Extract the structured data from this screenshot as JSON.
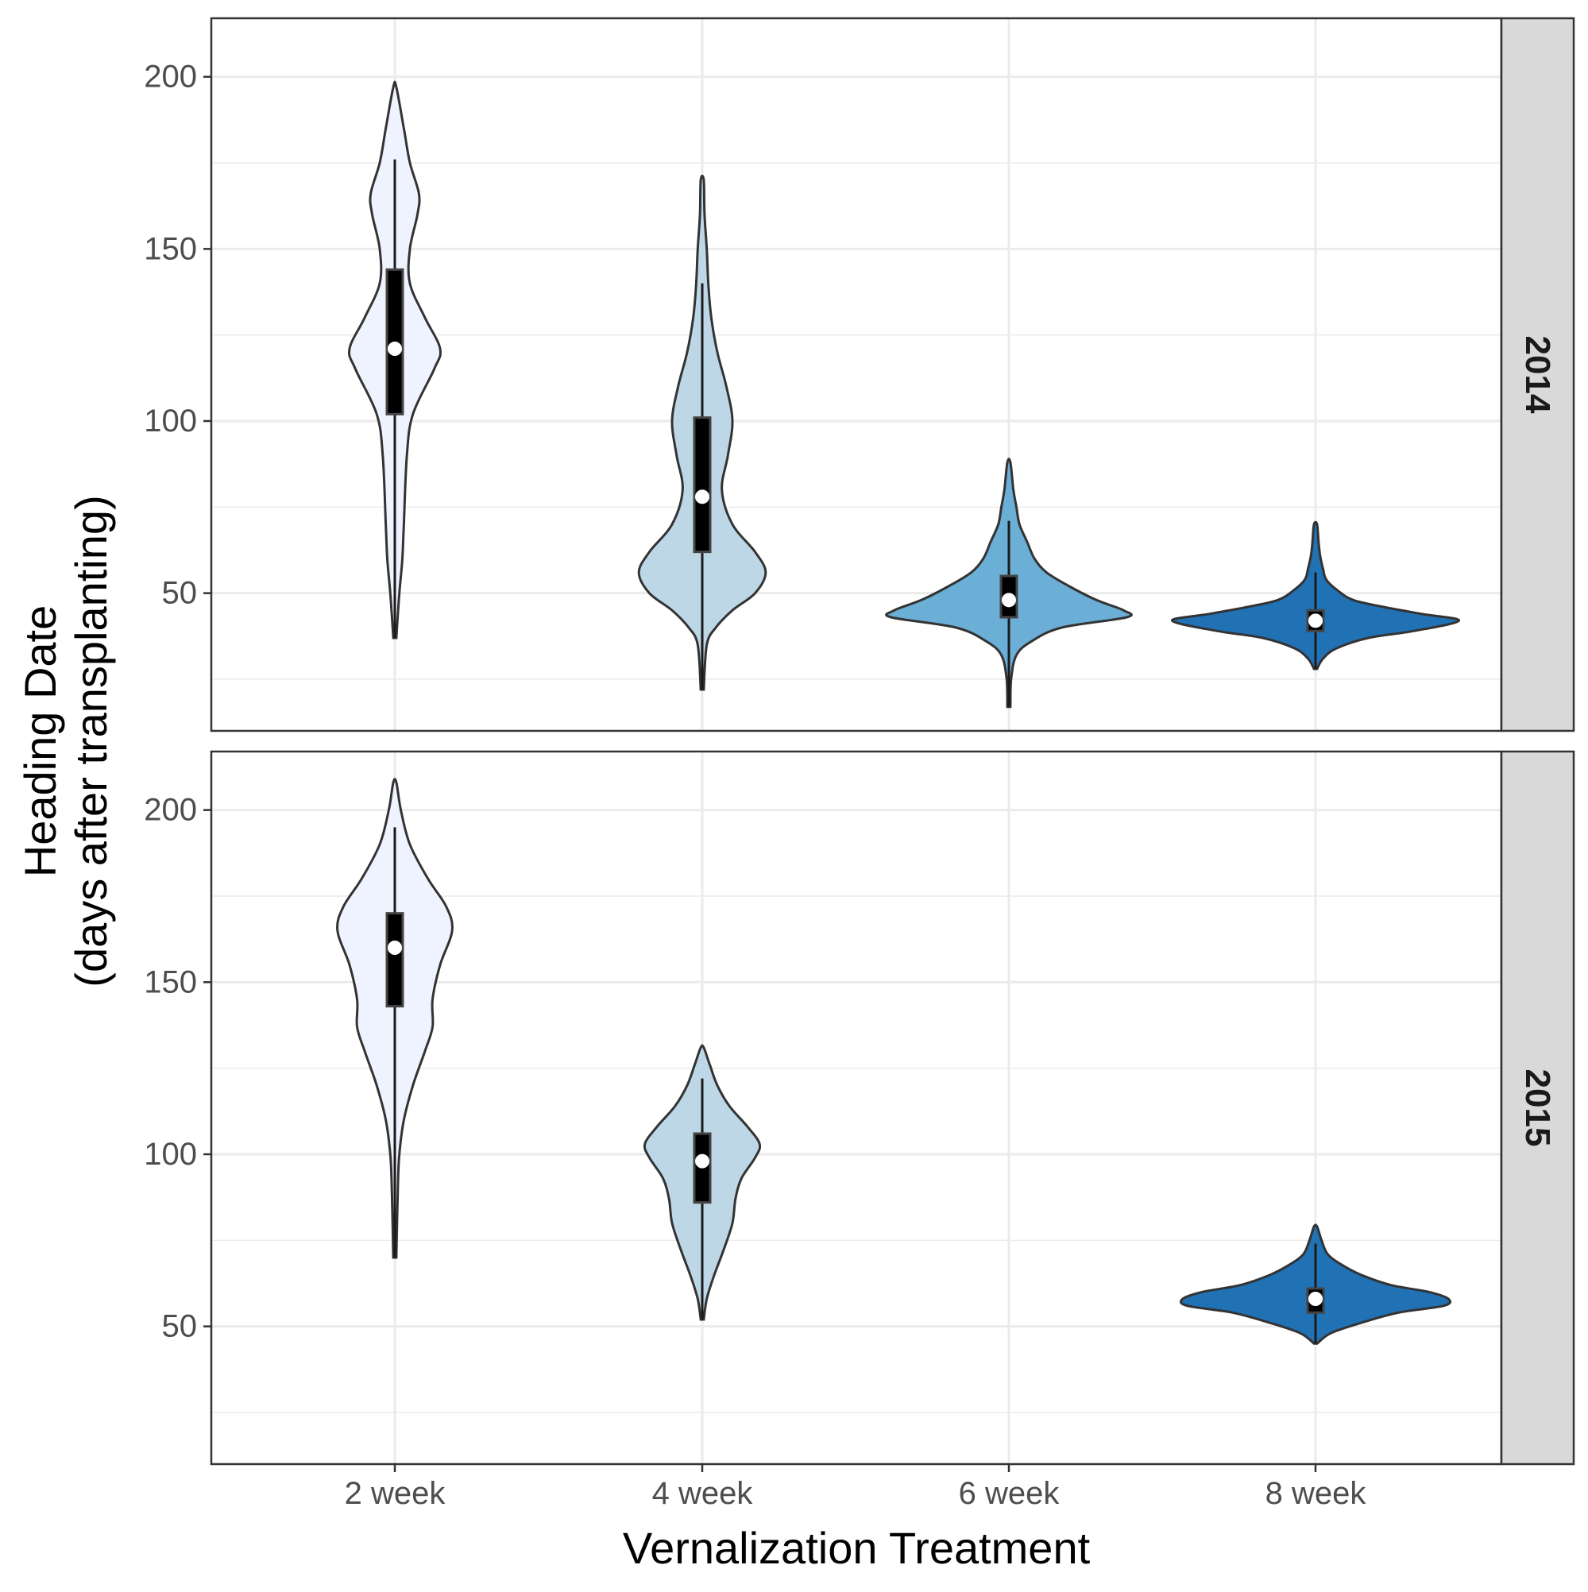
{
  "chart_data": {
    "type": "violin",
    "xlabel": "Vernalization Treatment",
    "ylabel": [
      "Heading Date",
      "(days after transplanting)"
    ],
    "categories": [
      "2 week",
      "4 week",
      "6 week",
      "8 week"
    ],
    "ylim": [
      10,
      217
    ],
    "yticks": [
      50,
      100,
      150,
      200
    ],
    "grid": true,
    "fill_colors": [
      "#eff3ff",
      "#bdd7e7",
      "#6baed6",
      "#2171b5"
    ],
    "facets": [
      {
        "label": "2014",
        "groups": [
          {
            "category": "2 week",
            "min": 37,
            "max": 197,
            "q1": 102,
            "median": 121,
            "q3": 144,
            "whisker_low": 37,
            "whisker_high": 176,
            "density": [
              [
                37,
                0.01
              ],
              [
                50,
                0.03
              ],
              [
                60,
                0.05
              ],
              [
                70,
                0.06
              ],
              [
                90,
                0.08
              ],
              [
                102,
                0.12
              ],
              [
                115,
                0.26
              ],
              [
                121,
                0.3
              ],
              [
                130,
                0.2
              ],
              [
                140,
                0.1
              ],
              [
                150,
                0.1
              ],
              [
                160,
                0.15
              ],
              [
                166,
                0.16
              ],
              [
                175,
                0.1
              ],
              [
                185,
                0.06
              ],
              [
                197,
                0.01
              ]
            ]
          },
          {
            "category": "4 week",
            "min": 22,
            "max": 170,
            "q1": 62,
            "median": 78,
            "q3": 101,
            "whisker_low": 22,
            "whisker_high": 140,
            "density": [
              [
                22,
                0.01
              ],
              [
                35,
                0.03
              ],
              [
                40,
                0.09
              ],
              [
                45,
                0.2
              ],
              [
                50,
                0.35
              ],
              [
                56,
                0.42
              ],
              [
                62,
                0.35
              ],
              [
                70,
                0.2
              ],
              [
                80,
                0.13
              ],
              [
                90,
                0.17
              ],
              [
                100,
                0.2
              ],
              [
                110,
                0.16
              ],
              [
                120,
                0.1
              ],
              [
                130,
                0.06
              ],
              [
                140,
                0.04
              ],
              [
                150,
                0.03
              ],
              [
                160,
                0.015
              ],
              [
                170,
                0.01
              ]
            ]
          },
          {
            "category": "6 week",
            "min": 17,
            "max": 88,
            "q1": 43,
            "median": 48,
            "q3": 55,
            "whisker_low": 17,
            "whisker_high": 71,
            "density": [
              [
                17,
                0.01
              ],
              [
                25,
                0.015
              ],
              [
                32,
                0.05
              ],
              [
                36,
                0.15
              ],
              [
                40,
                0.35
              ],
              [
                43,
                0.78
              ],
              [
                45,
                0.76
              ],
              [
                48,
                0.58
              ],
              [
                52,
                0.4
              ],
              [
                56,
                0.25
              ],
              [
                60,
                0.17
              ],
              [
                65,
                0.12
              ],
              [
                70,
                0.07
              ],
              [
                75,
                0.05
              ],
              [
                80,
                0.03
              ],
              [
                88,
                0.01
              ]
            ]
          },
          {
            "category": "8 week",
            "min": 28,
            "max": 70,
            "q1": 39,
            "median": 42,
            "q3": 45,
            "whisker_low": 28,
            "whisker_high": 56,
            "density": [
              [
                28,
                0.01
              ],
              [
                31,
                0.05
              ],
              [
                34,
                0.14
              ],
              [
                37,
                0.35
              ],
              [
                39,
                0.65
              ],
              [
                42,
                0.95
              ],
              [
                44,
                0.7
              ],
              [
                46,
                0.45
              ],
              [
                48,
                0.25
              ],
              [
                51,
                0.14
              ],
              [
                54,
                0.07
              ],
              [
                57,
                0.05
              ],
              [
                61,
                0.03
              ],
              [
                65,
                0.02
              ],
              [
                70,
                0.01
              ]
            ]
          }
        ]
      },
      {
        "label": "2015",
        "groups": [
          {
            "category": "2 week",
            "min": 70,
            "max": 208,
            "q1": 143,
            "median": 160,
            "q3": 170,
            "whisker_low": 70,
            "whisker_high": 195,
            "density": [
              [
                70,
                0.01
              ],
              [
                90,
                0.02
              ],
              [
                100,
                0.03
              ],
              [
                110,
                0.06
              ],
              [
                120,
                0.12
              ],
              [
                130,
                0.2
              ],
              [
                137,
                0.25
              ],
              [
                145,
                0.25
              ],
              [
                155,
                0.3
              ],
              [
                165,
                0.38
              ],
              [
                172,
                0.34
              ],
              [
                180,
                0.22
              ],
              [
                190,
                0.1
              ],
              [
                200,
                0.04
              ],
              [
                208,
                0.01
              ]
            ]
          },
          {
            "category": "4 week",
            "min": 52,
            "max": 131,
            "q1": 86,
            "median": 98,
            "q3": 106,
            "whisker_low": 52,
            "whisker_high": 122,
            "density": [
              [
                52,
                0.01
              ],
              [
                58,
                0.03
              ],
              [
                65,
                0.08
              ],
              [
                72,
                0.14
              ],
              [
                80,
                0.2
              ],
              [
                87,
                0.22
              ],
              [
                93,
                0.26
              ],
              [
                99,
                0.35
              ],
              [
                103,
                0.38
              ],
              [
                108,
                0.3
              ],
              [
                114,
                0.18
              ],
              [
                120,
                0.1
              ],
              [
                126,
                0.05
              ],
              [
                131,
                0.01
              ]
            ]
          },
          {
            "category": "8 week",
            "min": 45,
            "max": 79,
            "q1": 54,
            "median": 58,
            "q3": 61,
            "whisker_low": 45,
            "whisker_high": 74,
            "density": [
              [
                45,
                0.01
              ],
              [
                48,
                0.1
              ],
              [
                51,
                0.3
              ],
              [
                54,
                0.55
              ],
              [
                56,
                0.85
              ],
              [
                58,
                0.88
              ],
              [
                60,
                0.75
              ],
              [
                62,
                0.5
              ],
              [
                65,
                0.3
              ],
              [
                68,
                0.17
              ],
              [
                71,
                0.08
              ],
              [
                75,
                0.04
              ],
              [
                79,
                0.01
              ]
            ]
          }
        ]
      }
    ]
  }
}
